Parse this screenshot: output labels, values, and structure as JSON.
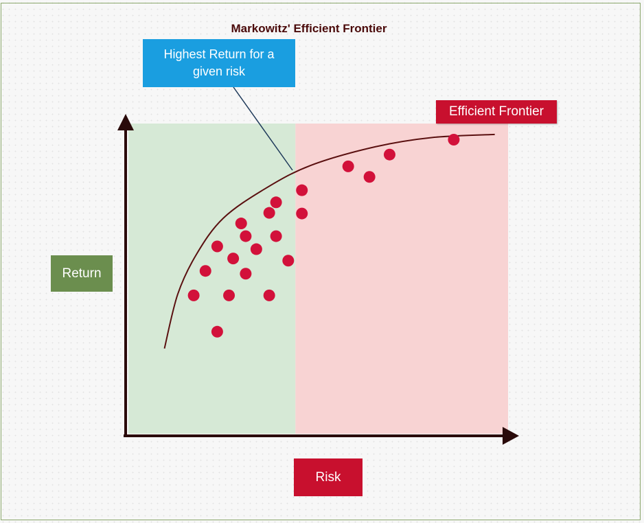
{
  "title": "Markowitz' Efficient Frontier",
  "callout": {
    "text": "Highest Return for a given risk"
  },
  "frontier_label": "Efficient Frontier",
  "axis_labels": {
    "y": "Return",
    "x": "Risk"
  },
  "colors": {
    "low_risk_zone": "#d6e9d6",
    "high_risk_zone": "#f8d3d3",
    "dot": "#d2113a",
    "axis": "#2a0a0a",
    "callout_bg": "#1a9ee0",
    "frontier_label_bg": "#c8102e",
    "return_label_bg": "#6b8e4e",
    "risk_label_bg": "#c8102e"
  },
  "chart_data": {
    "type": "scatter",
    "xlim": [
      0,
      100
    ],
    "ylim": [
      0,
      100
    ],
    "zone_split_x": 44,
    "frontier_curve": [
      {
        "x": 9.5,
        "y": 27.5
      },
      {
        "x": 13,
        "y": 45
      },
      {
        "x": 18,
        "y": 58
      },
      {
        "x": 25,
        "y": 69.5
      },
      {
        "x": 36,
        "y": 79
      },
      {
        "x": 48,
        "y": 86.5
      },
      {
        "x": 65,
        "y": 92.5
      },
      {
        "x": 80,
        "y": 95.5
      },
      {
        "x": 96.5,
        "y": 96.5
      }
    ],
    "points": [
      {
        "x": 17.2,
        "y": 44.6
      },
      {
        "x": 20.3,
        "y": 52.5
      },
      {
        "x": 23.4,
        "y": 60.4
      },
      {
        "x": 23.4,
        "y": 32.9
      },
      {
        "x": 26.5,
        "y": 44.6
      },
      {
        "x": 27.6,
        "y": 56.5
      },
      {
        "x": 29.7,
        "y": 67.8
      },
      {
        "x": 30.9,
        "y": 51.6
      },
      {
        "x": 30.9,
        "y": 63.7
      },
      {
        "x": 33.7,
        "y": 59.5
      },
      {
        "x": 37.1,
        "y": 44.6
      },
      {
        "x": 37.1,
        "y": 71.2
      },
      {
        "x": 38.9,
        "y": 74.6
      },
      {
        "x": 38.9,
        "y": 63.7
      },
      {
        "x": 42.1,
        "y": 55.8
      },
      {
        "x": 45.7,
        "y": 78.5
      },
      {
        "x": 45.7,
        "y": 71.0
      },
      {
        "x": 57.9,
        "y": 86.2
      },
      {
        "x": 63.5,
        "y": 82.8
      },
      {
        "x": 68.8,
        "y": 90.0
      },
      {
        "x": 85.7,
        "y": 94.8
      }
    ]
  }
}
